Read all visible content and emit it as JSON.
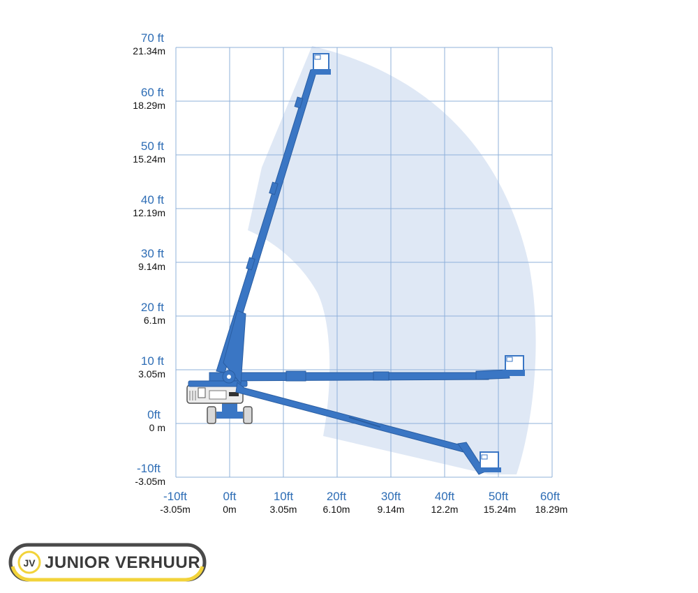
{
  "diagram": {
    "y_labels": [
      {
        "ft": "70 ft",
        "m": "21.34m"
      },
      {
        "ft": "60 ft",
        "m": "18.29m"
      },
      {
        "ft": "50 ft",
        "m": "15.24m"
      },
      {
        "ft": "40 ft",
        "m": "12.19m"
      },
      {
        "ft": "30 ft",
        "m": "9.14m"
      },
      {
        "ft": "20 ft",
        "m": "6.1m"
      },
      {
        "ft": "10 ft",
        "m": "3.05m"
      },
      {
        "ft": "0ft",
        "m": "0 m"
      },
      {
        "ft": "-10ft",
        "m": "-3.05m"
      }
    ],
    "x_labels": [
      {
        "ft": "-10ft",
        "m": "-3.05m"
      },
      {
        "ft": "0ft",
        "m": "0m"
      },
      {
        "ft": "10ft",
        "m": "3.05m"
      },
      {
        "ft": "20ft",
        "m": "6.10m"
      },
      {
        "ft": "30ft",
        "m": "9.14m"
      },
      {
        "ft": "40ft",
        "m": "12.2m"
      },
      {
        "ft": "50ft",
        "m": "15.24m"
      },
      {
        "ft": "60ft",
        "m": "18.29m"
      }
    ]
  },
  "logo": {
    "text": "JUNIOR VERHUUR",
    "mark": "JV"
  },
  "colors": {
    "boom": "#3a76c4",
    "envelope": "#dfe8f5",
    "axis_ft": "#2e6db5",
    "grid": "#8fb0da",
    "logo_ring": "#f2d33a"
  }
}
